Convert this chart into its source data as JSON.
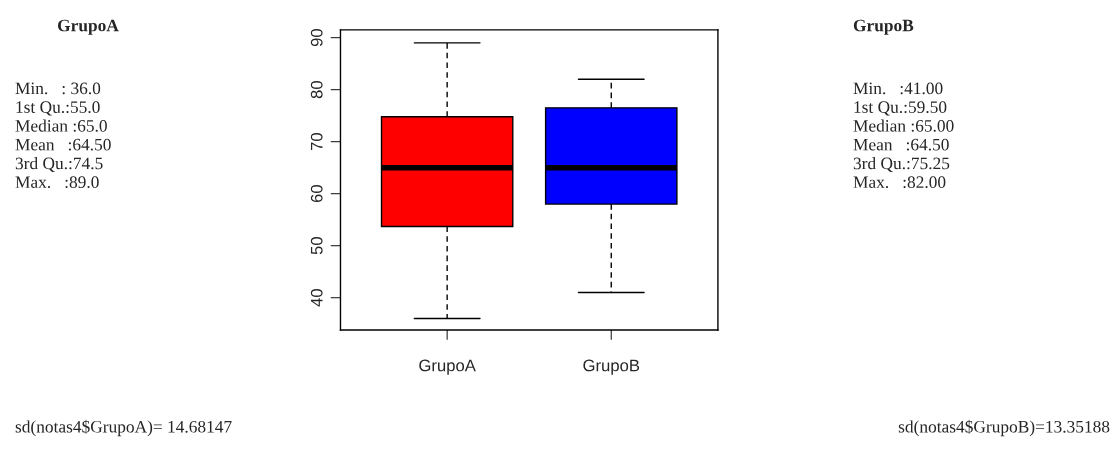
{
  "chart_data": {
    "type": "box",
    "categories": [
      "GrupoA",
      "GrupoB"
    ],
    "colors": [
      "#ff0000",
      "#0000ff"
    ],
    "boxes": [
      {
        "low": 36,
        "q1": 53.7,
        "median": 65,
        "q3": 74.8,
        "high": 89
      },
      {
        "low": 41,
        "q1": 58,
        "median": 65,
        "q3": 76.5,
        "high": 82
      }
    ],
    "ylim": [
      33.8,
      91.5
    ],
    "yticks": [
      40,
      50,
      60,
      70,
      80,
      90
    ],
    "grid": false,
    "annotations": [
      "GrupoA",
      "Min.   : 36.0\n1st Qu.:55.0\nMedian :65.0\nMean   :64.50\n3rd Qu.:74.5\nMax.   :89.0",
      "GrupoB",
      "Min.   :41.00\n1st Qu.:59.50\nMedian :65.00\nMean   :64.50\n3rd Qu.:75.25\nMax.   :82.00",
      "sd(notas4$GrupoA)= 14.68147",
      "sd(notas4$GrupoB)=13.35188"
    ]
  }
}
